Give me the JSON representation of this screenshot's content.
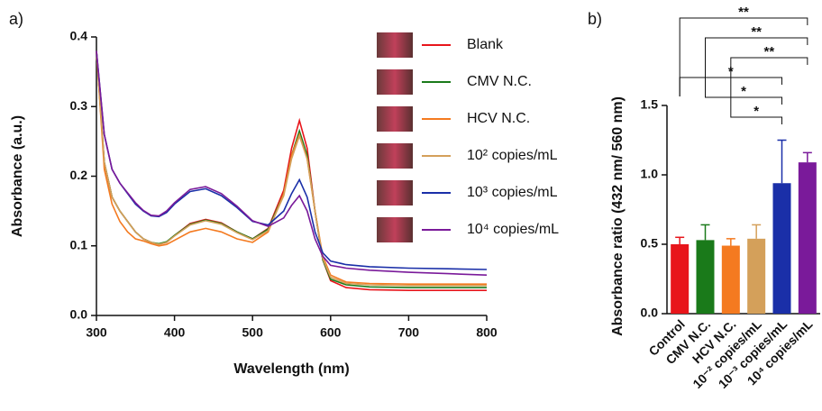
{
  "chart_data": [
    {
      "type": "line",
      "panel": "a)",
      "xlabel": "Wavelength (nm)",
      "ylabel": "Absorbance (a.u.)",
      "x": [
        300,
        310,
        320,
        330,
        340,
        350,
        360,
        370,
        380,
        390,
        400,
        420,
        440,
        460,
        480,
        500,
        520,
        540,
        550,
        560,
        570,
        580,
        590,
        600,
        620,
        650,
        700,
        750,
        800
      ],
      "xlim": [
        300,
        800
      ],
      "xticks": [
        300,
        400,
        500,
        600,
        700,
        800
      ],
      "ylim": [
        0,
        0.4
      ],
      "yticks": [
        {
          "value": 0,
          "label": "0.0"
        },
        0.1,
        0.2,
        0.3,
        0.4
      ],
      "series": [
        {
          "name": "Blank",
          "color": "#e8151b",
          "values": [
            0.38,
            0.22,
            0.17,
            0.15,
            0.135,
            0.12,
            0.11,
            0.105,
            0.102,
            0.105,
            0.115,
            0.132,
            0.138,
            0.133,
            0.12,
            0.11,
            0.125,
            0.18,
            0.24,
            0.28,
            0.24,
            0.15,
            0.08,
            0.05,
            0.04,
            0.037,
            0.036,
            0.036,
            0.036
          ]
        },
        {
          "name": "CMV N.C.",
          "color": "#1a7a1a",
          "values": [
            0.38,
            0.22,
            0.17,
            0.15,
            0.135,
            0.12,
            0.11,
            0.105,
            0.103,
            0.106,
            0.115,
            0.131,
            0.137,
            0.132,
            0.12,
            0.11,
            0.124,
            0.175,
            0.23,
            0.265,
            0.23,
            0.15,
            0.08,
            0.052,
            0.044,
            0.041,
            0.04,
            0.04,
            0.04
          ]
        },
        {
          "name": "HCV N.C.",
          "color": "#f47a20",
          "values": [
            0.38,
            0.21,
            0.16,
            0.135,
            0.12,
            0.11,
            0.107,
            0.103,
            0.1,
            0.102,
            0.108,
            0.12,
            0.125,
            0.12,
            0.11,
            0.105,
            0.12,
            0.175,
            0.23,
            0.26,
            0.225,
            0.15,
            0.085,
            0.058,
            0.048,
            0.046,
            0.045,
            0.045,
            0.045
          ]
        },
        {
          "name": "10² copies/mL",
          "color": "#d4a05a",
          "values": [
            0.38,
            0.22,
            0.17,
            0.15,
            0.135,
            0.12,
            0.11,
            0.105,
            0.102,
            0.105,
            0.114,
            0.13,
            0.136,
            0.131,
            0.119,
            0.109,
            0.122,
            0.172,
            0.225,
            0.258,
            0.225,
            0.15,
            0.082,
            0.055,
            0.046,
            0.044,
            0.043,
            0.043,
            0.043
          ]
        },
        {
          "name": "10³ copies/mL",
          "color": "#1a2fa8",
          "values": [
            0.38,
            0.26,
            0.21,
            0.19,
            0.175,
            0.16,
            0.15,
            0.143,
            0.142,
            0.148,
            0.16,
            0.178,
            0.182,
            0.172,
            0.155,
            0.135,
            0.13,
            0.15,
            0.175,
            0.195,
            0.17,
            0.12,
            0.09,
            0.078,
            0.073,
            0.07,
            0.068,
            0.067,
            0.066
          ]
        },
        {
          "name": "10⁴ copies/mL",
          "color": "#7a1a9a",
          "values": [
            0.38,
            0.26,
            0.21,
            0.19,
            0.176,
            0.162,
            0.151,
            0.144,
            0.143,
            0.15,
            0.162,
            0.181,
            0.185,
            0.175,
            0.157,
            0.136,
            0.128,
            0.14,
            0.158,
            0.172,
            0.15,
            0.11,
            0.085,
            0.072,
            0.068,
            0.065,
            0.062,
            0.06,
            0.058
          ]
        }
      ]
    },
    {
      "type": "bar",
      "panel": "b)",
      "ylabel": "Absorbance ratio (432 nm/ 560 nm)",
      "categories": [
        "Control",
        "CMV N.C.",
        "HCV N.C.",
        "10⁻² copies/mL",
        "10⁻³ copies/mL",
        "10⁴ copies/mL"
      ],
      "values": [
        0.5,
        0.53,
        0.49,
        0.54,
        0.94,
        1.09
      ],
      "errors": [
        0.05,
        0.11,
        0.05,
        0.1,
        0.31,
        0.07
      ],
      "colors": [
        "#e8151b",
        "#1a7a1a",
        "#f47a20",
        "#d4a05a",
        "#1a2fa8",
        "#7a1a9a"
      ],
      "ylim": [
        0,
        1.5
      ],
      "yticks": [
        {
          "value": 0,
          "label": "0.0"
        },
        0.5,
        {
          "value": 1,
          "label": "1.0"
        },
        1.5
      ],
      "comparisons": [
        {
          "from": 0,
          "to": 5,
          "label": "**"
        },
        {
          "from": 1,
          "to": 5,
          "label": "**"
        },
        {
          "from": 2,
          "to": 5,
          "label": "**"
        },
        {
          "from": 0,
          "to": 4,
          "label": "*"
        },
        {
          "from": 1,
          "to": 4,
          "label": "*"
        },
        {
          "from": 2,
          "to": 4,
          "label": "*"
        }
      ]
    }
  ]
}
